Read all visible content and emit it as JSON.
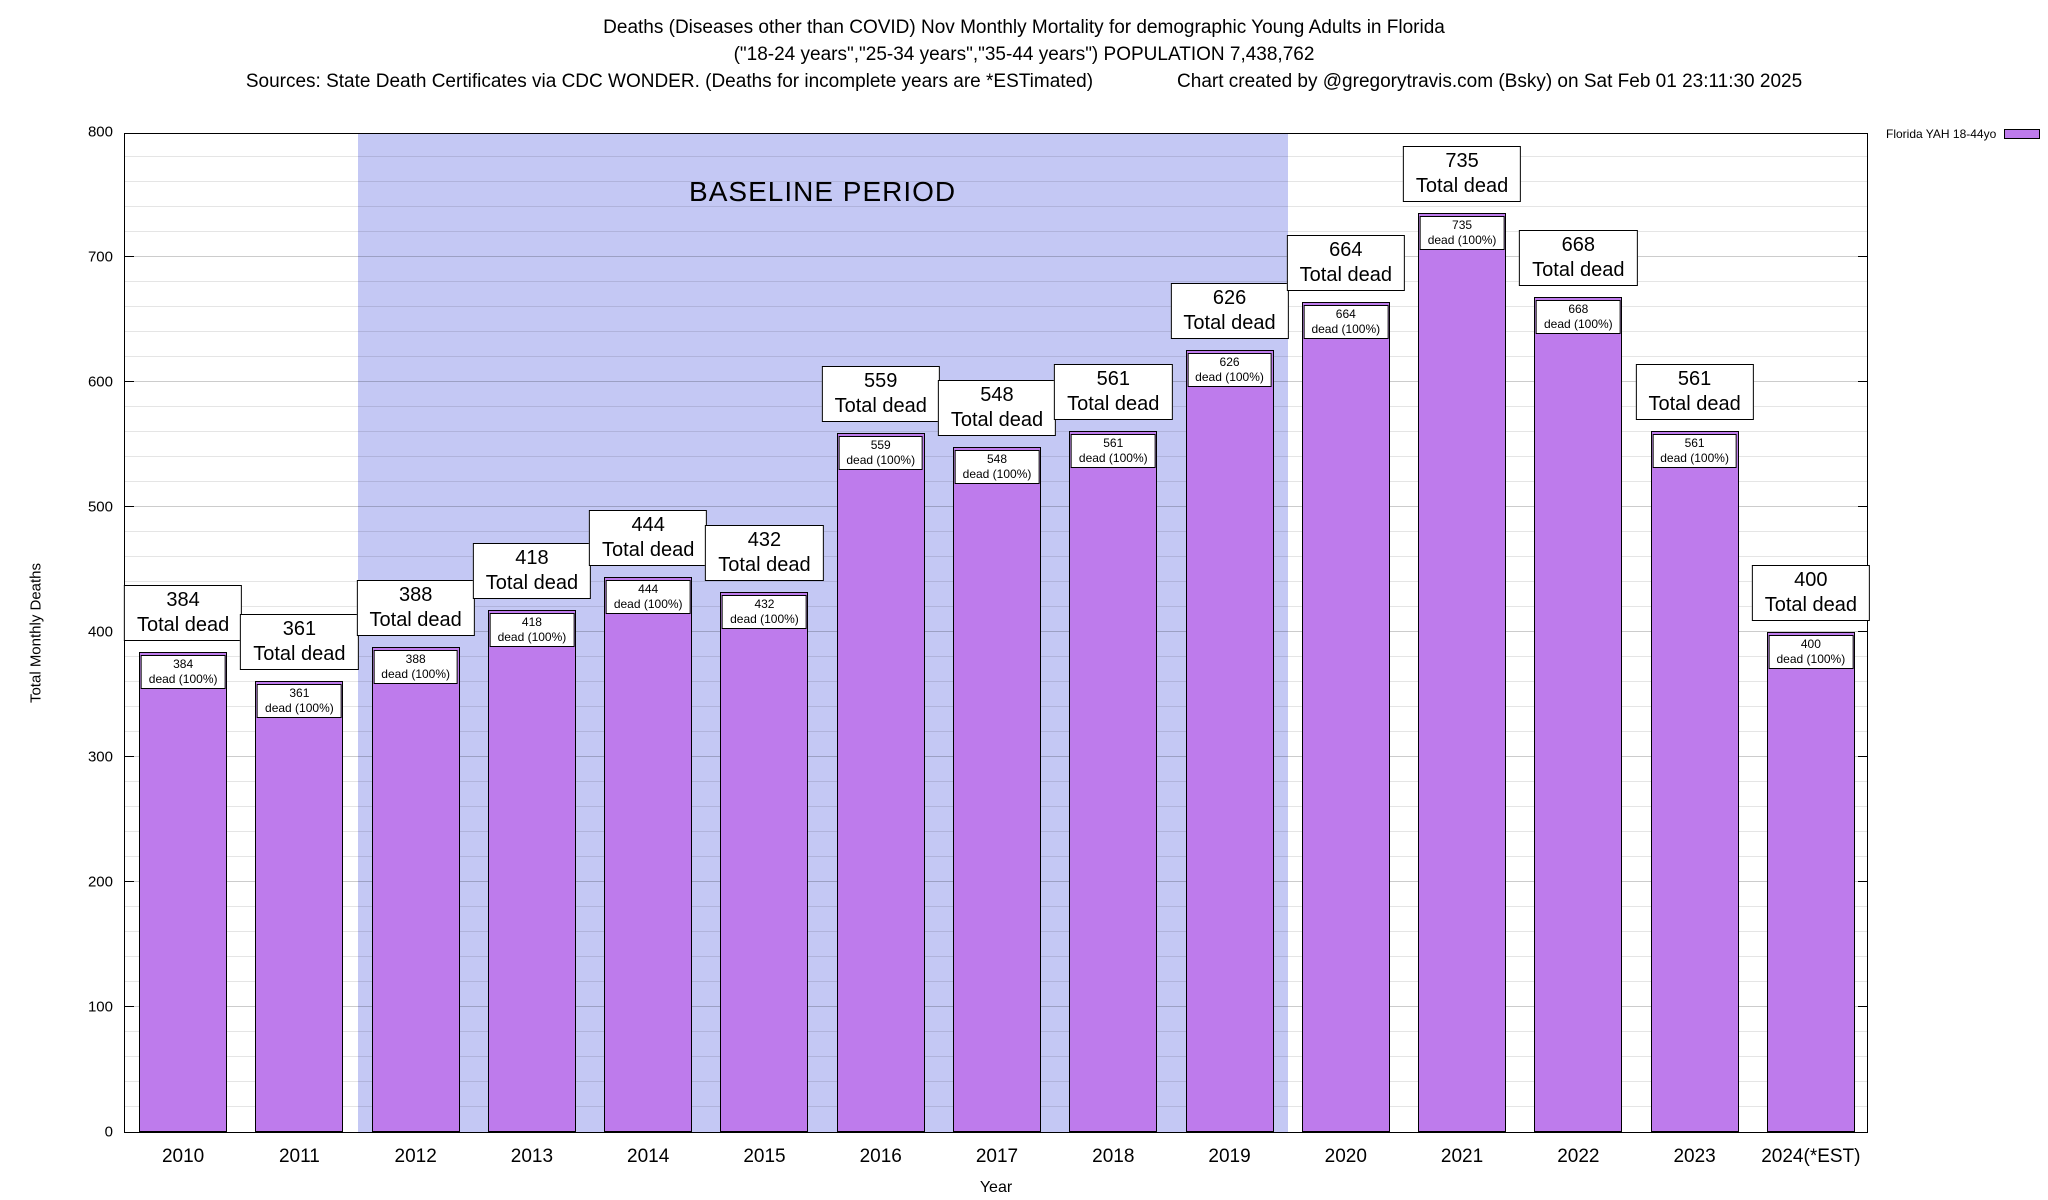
{
  "header": {
    "sources": "Sources: State Death Certificates via CDC WONDER. (Deaths for incomplete years are *ESTimated)",
    "credit": "Chart created by @gregorytravis.com (Bsky) on Sat Feb 01 23:11:30 2025"
  },
  "labels": {
    "total_dead": "Total dead",
    "dead_pct": "dead (100%)"
  },
  "chart_data": {
    "type": "bar",
    "title": "Deaths (Diseases other than COVID) Nov Monthly Mortality for demographic Young Adults in Florida",
    "subtitle": "(\"18-24 years\",\"25-34 years\",\"35-44 years\") POPULATION 7,438,762",
    "categories": [
      "2010",
      "2011",
      "2012",
      "2013",
      "2014",
      "2015",
      "2016",
      "2017",
      "2018",
      "2019",
      "2020",
      "2021",
      "2022",
      "2023",
      "2024(*EST)"
    ],
    "series": [
      {
        "name": "Florida YAH 18-44yo",
        "values": [
          384,
          361,
          388,
          418,
          444,
          432,
          559,
          548,
          561,
          626,
          664,
          735,
          668,
          561,
          400
        ]
      }
    ],
    "xlabel": "Year",
    "ylabel": "Total Monthly Deaths",
    "ylim": [
      0,
      800
    ],
    "yticks": [
      0,
      100,
      200,
      300,
      400,
      500,
      600,
      700,
      800
    ],
    "ytick_step": 100,
    "minor_grid_step": 20,
    "grid": true,
    "legend_position": "top-right-outside",
    "bar_color": "#be7bec",
    "baseline_band": {
      "from": "2012",
      "to": "2019",
      "color": "#c4c8f4",
      "label": "BASELINE PERIOD"
    }
  }
}
